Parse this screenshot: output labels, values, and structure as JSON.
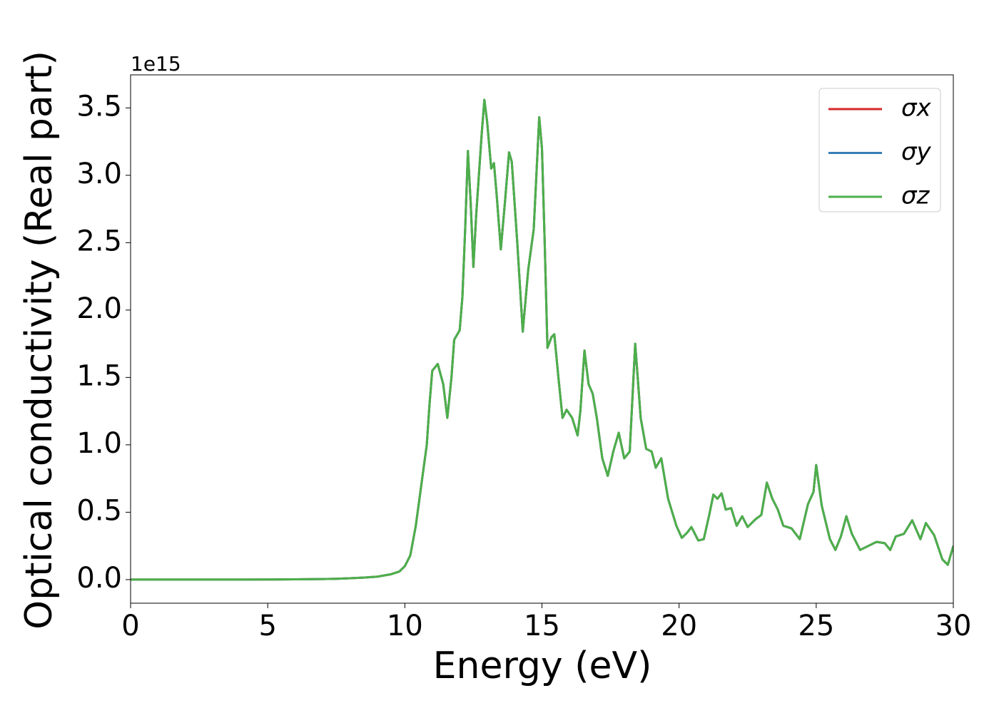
{
  "chart_data": {
    "type": "line",
    "xlabel": "Energy (eV)",
    "ylabel": "Optical conductivity (Real part)",
    "y_offset": "1e15",
    "xlim": [
      0,
      30
    ],
    "ylim": [
      -0.175,
      3.745
    ],
    "xticks": [
      0,
      5,
      10,
      15,
      20,
      25,
      30
    ],
    "yticks": [
      {
        "value": 0,
        "label": "0.0"
      },
      0.5,
      {
        "value": 1,
        "label": "1.0"
      },
      1.5,
      {
        "value": 2,
        "label": "2.0"
      },
      2.5,
      {
        "value": 3,
        "label": "3.0"
      },
      3.5
    ],
    "grid": false,
    "legend": "upper right",
    "x": [
      0,
      1,
      2,
      3,
      4,
      5,
      6,
      7,
      7.5,
      8,
      8.5,
      9,
      9.5,
      9.8,
      10,
      10.2,
      10.4,
      10.6,
      10.8,
      10.9,
      11.0,
      11.2,
      11.4,
      11.55,
      11.7,
      11.8,
      12.0,
      12.1,
      12.2,
      12.3,
      12.4,
      12.5,
      12.6,
      12.8,
      12.9,
      13.0,
      13.15,
      13.25,
      13.35,
      13.5,
      13.65,
      13.8,
      13.9,
      14.1,
      14.3,
      14.5,
      14.7,
      14.9,
      15.0,
      15.1,
      15.2,
      15.35,
      15.45,
      15.6,
      15.75,
      15.9,
      16.1,
      16.3,
      16.4,
      16.55,
      16.7,
      16.85,
      17.0,
      17.2,
      17.4,
      17.6,
      17.8,
      18.0,
      18.2,
      18.4,
      18.6,
      18.8,
      19.0,
      19.15,
      19.35,
      19.6,
      19.9,
      20.1,
      20.3,
      20.45,
      20.7,
      20.9,
      21.1,
      21.25,
      21.4,
      21.55,
      21.7,
      21.9,
      22.1,
      22.3,
      22.5,
      22.8,
      23.0,
      23.2,
      23.4,
      23.6,
      23.8,
      24.1,
      24.4,
      24.7,
      24.9,
      25.0,
      25.2,
      25.5,
      25.7,
      25.9,
      26.1,
      26.3,
      26.6,
      26.9,
      27.2,
      27.5,
      27.7,
      27.9,
      28.2,
      28.5,
      28.8,
      29.0,
      29.3,
      29.6,
      29.8,
      30.0
    ],
    "series": [
      {
        "name": "σx",
        "color": "#d62728",
        "values": [
          0,
          0,
          0,
          0,
          0,
          0.001,
          0.002,
          0.004,
          0.006,
          0.01,
          0.015,
          0.022,
          0.04,
          0.06,
          0.1,
          0.18,
          0.4,
          0.7,
          1.0,
          1.3,
          1.55,
          1.6,
          1.45,
          1.2,
          1.5,
          1.78,
          1.85,
          2.1,
          2.6,
          3.18,
          2.8,
          2.32,
          2.7,
          3.3,
          3.56,
          3.4,
          3.05,
          3.09,
          2.85,
          2.45,
          2.8,
          3.17,
          3.1,
          2.5,
          1.84,
          2.3,
          2.6,
          3.43,
          3.2,
          2.5,
          1.72,
          1.8,
          1.82,
          1.5,
          1.2,
          1.26,
          1.2,
          1.07,
          1.25,
          1.7,
          1.45,
          1.38,
          1.2,
          0.9,
          0.77,
          0.95,
          1.09,
          0.9,
          0.95,
          1.75,
          1.2,
          0.97,
          0.95,
          0.83,
          0.9,
          0.6,
          0.4,
          0.31,
          0.35,
          0.39,
          0.29,
          0.3,
          0.48,
          0.63,
          0.6,
          0.64,
          0.52,
          0.53,
          0.4,
          0.47,
          0.39,
          0.45,
          0.48,
          0.72,
          0.6,
          0.52,
          0.4,
          0.38,
          0.3,
          0.56,
          0.65,
          0.85,
          0.55,
          0.3,
          0.22,
          0.32,
          0.47,
          0.34,
          0.22,
          0.25,
          0.28,
          0.27,
          0.22,
          0.32,
          0.34,
          0.44,
          0.3,
          0.42,
          0.33,
          0.15,
          0.11,
          0.25
        ]
      },
      {
        "name": "σy",
        "color": "#377eb8",
        "values": [
          0,
          0,
          0,
          0,
          0,
          0.001,
          0.002,
          0.004,
          0.006,
          0.01,
          0.015,
          0.022,
          0.04,
          0.06,
          0.1,
          0.18,
          0.4,
          0.7,
          1.0,
          1.3,
          1.55,
          1.6,
          1.45,
          1.2,
          1.5,
          1.78,
          1.85,
          2.1,
          2.6,
          3.18,
          2.8,
          2.32,
          2.7,
          3.3,
          3.56,
          3.4,
          3.05,
          3.09,
          2.85,
          2.45,
          2.8,
          3.17,
          3.1,
          2.5,
          1.84,
          2.3,
          2.6,
          3.43,
          3.2,
          2.5,
          1.72,
          1.8,
          1.82,
          1.5,
          1.2,
          1.26,
          1.2,
          1.07,
          1.25,
          1.7,
          1.45,
          1.38,
          1.2,
          0.9,
          0.77,
          0.95,
          1.09,
          0.9,
          0.95,
          1.75,
          1.2,
          0.97,
          0.95,
          0.83,
          0.9,
          0.6,
          0.4,
          0.31,
          0.35,
          0.39,
          0.29,
          0.3,
          0.48,
          0.63,
          0.6,
          0.64,
          0.52,
          0.53,
          0.4,
          0.47,
          0.39,
          0.45,
          0.48,
          0.72,
          0.6,
          0.52,
          0.4,
          0.38,
          0.3,
          0.56,
          0.65,
          0.85,
          0.55,
          0.3,
          0.22,
          0.32,
          0.47,
          0.34,
          0.22,
          0.25,
          0.28,
          0.27,
          0.22,
          0.32,
          0.34,
          0.44,
          0.3,
          0.42,
          0.33,
          0.15,
          0.11,
          0.25
        ]
      },
      {
        "name": "σz",
        "color": "#4daf4a",
        "values": [
          0,
          0,
          0,
          0,
          0,
          0.001,
          0.002,
          0.004,
          0.006,
          0.01,
          0.015,
          0.022,
          0.04,
          0.06,
          0.1,
          0.18,
          0.4,
          0.7,
          1.0,
          1.3,
          1.55,
          1.6,
          1.45,
          1.2,
          1.5,
          1.78,
          1.85,
          2.1,
          2.6,
          3.18,
          2.8,
          2.32,
          2.7,
          3.3,
          3.56,
          3.4,
          3.05,
          3.09,
          2.85,
          2.45,
          2.8,
          3.17,
          3.1,
          2.5,
          1.84,
          2.3,
          2.6,
          3.43,
          3.2,
          2.5,
          1.72,
          1.8,
          1.82,
          1.5,
          1.2,
          1.26,
          1.2,
          1.07,
          1.25,
          1.7,
          1.45,
          1.38,
          1.2,
          0.9,
          0.77,
          0.95,
          1.09,
          0.9,
          0.95,
          1.75,
          1.2,
          0.97,
          0.95,
          0.83,
          0.9,
          0.6,
          0.4,
          0.31,
          0.35,
          0.39,
          0.29,
          0.3,
          0.48,
          0.63,
          0.6,
          0.64,
          0.52,
          0.53,
          0.4,
          0.47,
          0.39,
          0.45,
          0.48,
          0.72,
          0.6,
          0.52,
          0.4,
          0.38,
          0.3,
          0.56,
          0.65,
          0.85,
          0.55,
          0.3,
          0.22,
          0.32,
          0.47,
          0.34,
          0.22,
          0.25,
          0.28,
          0.27,
          0.22,
          0.32,
          0.34,
          0.44,
          0.3,
          0.42,
          0.33,
          0.15,
          0.11,
          0.25
        ]
      }
    ]
  }
}
